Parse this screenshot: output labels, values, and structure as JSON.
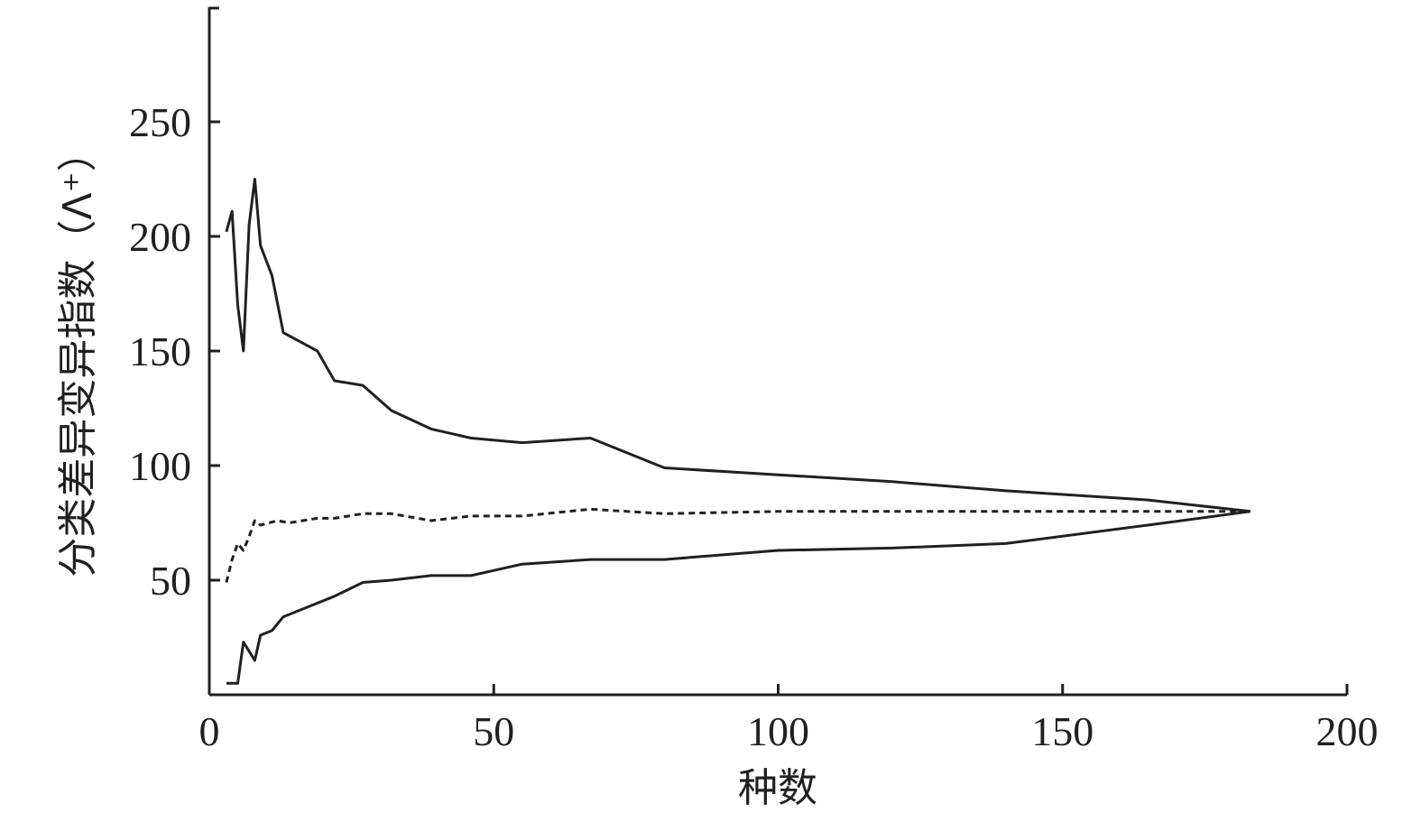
{
  "chart_data": {
    "type": "line",
    "xlabel": "种数",
    "ylabel": "分类差异变异指数（Λ⁺）",
    "xlim": [
      0,
      200
    ],
    "ylim": [
      0,
      300
    ],
    "x_ticks": [
      0,
      50,
      100,
      150,
      200
    ],
    "y_ticks": [
      50,
      100,
      150,
      200,
      250
    ],
    "grid": false,
    "legend": "none",
    "series": [
      {
        "style": "solid",
        "points": [
          [
            3,
            202
          ],
          [
            4,
            211
          ],
          [
            5,
            170
          ],
          [
            6,
            150
          ],
          [
            7,
            205
          ],
          [
            8,
            225
          ],
          [
            9,
            196
          ],
          [
            11,
            183
          ],
          [
            13,
            158
          ],
          [
            16,
            154
          ],
          [
            19,
            150
          ],
          [
            22,
            137
          ],
          [
            27,
            135
          ],
          [
            32,
            124
          ],
          [
            39,
            116
          ],
          [
            46,
            112
          ],
          [
            55,
            110
          ],
          [
            67,
            112
          ],
          [
            80,
            99
          ],
          [
            100,
            96
          ],
          [
            120,
            93
          ],
          [
            140,
            89
          ],
          [
            165,
            85
          ],
          [
            183,
            80
          ]
        ]
      },
      {
        "style": "dashed",
        "points": [
          [
            3,
            49
          ],
          [
            4,
            59
          ],
          [
            5,
            66
          ],
          [
            6,
            63
          ],
          [
            7,
            69
          ],
          [
            8,
            76
          ],
          [
            9,
            74
          ],
          [
            12,
            76
          ],
          [
            14,
            75
          ],
          [
            19,
            77
          ],
          [
            22,
            77
          ],
          [
            27,
            79
          ],
          [
            32,
            79
          ],
          [
            39,
            76
          ],
          [
            46,
            78
          ],
          [
            55,
            78
          ],
          [
            67,
            81
          ],
          [
            80,
            79
          ],
          [
            100,
            80
          ],
          [
            140,
            80
          ],
          [
            183,
            80
          ]
        ]
      },
      {
        "style": "solid",
        "points": [
          [
            3,
            5
          ],
          [
            5,
            5
          ],
          [
            6,
            23
          ],
          [
            8,
            15
          ],
          [
            9,
            26
          ],
          [
            11,
            28
          ],
          [
            13,
            34
          ],
          [
            16,
            37
          ],
          [
            22,
            43
          ],
          [
            27,
            49
          ],
          [
            32,
            50
          ],
          [
            39,
            52
          ],
          [
            46,
            52
          ],
          [
            55,
            57
          ],
          [
            67,
            59
          ],
          [
            80,
            59
          ],
          [
            100,
            63
          ],
          [
            120,
            64
          ],
          [
            140,
            66
          ],
          [
            165,
            74
          ],
          [
            183,
            80
          ]
        ]
      }
    ]
  }
}
